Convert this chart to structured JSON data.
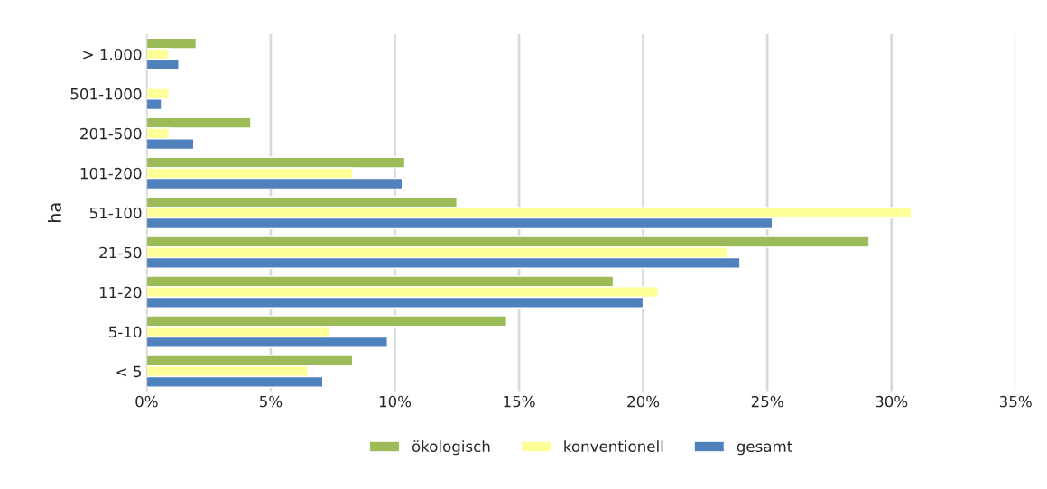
{
  "chart_data": {
    "type": "bar",
    "orientation": "horizontal",
    "ylabel": "ha",
    "categories": [
      "> 1.000",
      "501-1000",
      "201-500",
      "101-200",
      "51-100",
      "21-50",
      "11-20",
      "5-10",
      "< 5"
    ],
    "series": [
      {
        "name": "ökologisch",
        "color": "#9bbb59",
        "values": [
          2.0,
          null,
          4.2,
          10.4,
          12.5,
          29.1,
          18.8,
          14.5,
          8.3
        ]
      },
      {
        "name": "konventionell",
        "color": "#ffff99",
        "values": [
          0.9,
          0.9,
          0.9,
          8.3,
          30.8,
          23.4,
          20.6,
          7.4,
          6.5
        ]
      },
      {
        "name": "gesamt",
        "color": "#4f81bd",
        "values": [
          1.3,
          0.6,
          1.9,
          10.3,
          25.2,
          23.9,
          20.0,
          9.7,
          7.1
        ]
      }
    ],
    "xlim": [
      0,
      35
    ],
    "xticks": [
      {
        "value": 0,
        "label": "0%"
      },
      {
        "value": 5,
        "label": "5%"
      },
      {
        "value": 10,
        "label": "10%"
      },
      {
        "value": 15,
        "label": "15%"
      },
      {
        "value": 20,
        "label": "20%"
      },
      {
        "value": 25,
        "label": "25%"
      },
      {
        "value": 30,
        "label": "30%"
      },
      {
        "value": 35,
        "label": "35%"
      }
    ],
    "grid": "x",
    "legend": "bottom"
  }
}
